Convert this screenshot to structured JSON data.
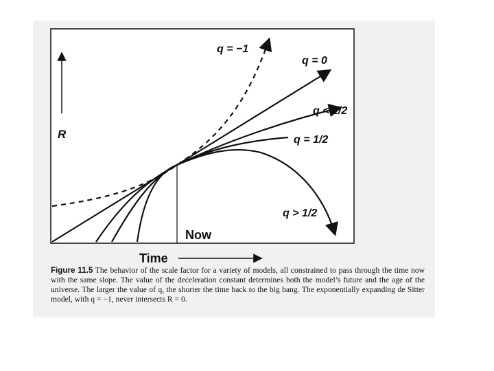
{
  "figure": {
    "axis_y_label": "R",
    "axis_x_label": "Time",
    "now_label": "Now",
    "curves": [
      {
        "id": "q-minus-1",
        "label": "q = −1",
        "style": "dashed"
      },
      {
        "id": "q-0",
        "label": "q = 0",
        "style": "solid"
      },
      {
        "id": "q-less-half",
        "label": "q < 1/2",
        "style": "solid"
      },
      {
        "id": "q-half",
        "label": "q = 1/2",
        "style": "solid"
      },
      {
        "id": "q-greater-half",
        "label": "q > 1/2",
        "style": "solid"
      }
    ]
  },
  "caption": {
    "number": "Figure 11.5",
    "text": "The behavior of the scale factor for a variety of models, all constrained to pass through the time now with the same slope. The value of the deceleration constant determines both the model’s future and the age of the universe. The larger the value of q, the shorter the time back to the big bang. The exponentially expanding de Sitter model, with q = −1, never intersects R = 0."
  }
}
